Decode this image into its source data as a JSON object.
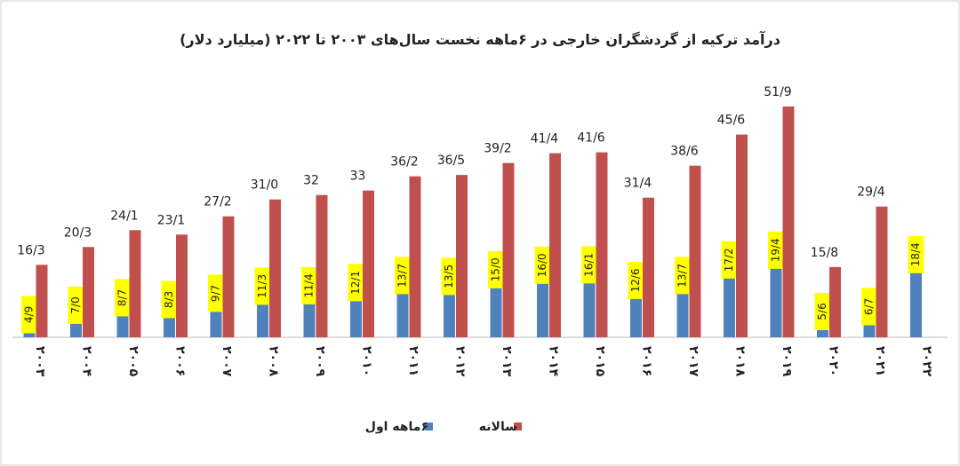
{
  "chart_data": {
    "type": "bar",
    "title": "درآمد ترکیه از گردشگران خارجی در ۶ماهه نخست سال‌های ۲۰۰۳ تا ۲۰۲۲ (میلیارد دلار)",
    "categories": [
      "۲۰۰۳",
      "۲۰۰۴",
      "۲۰۰۵",
      "۲۰۰۶",
      "۲۰۰۷",
      "۲۰۰۸",
      "۲۰۰۹",
      "۲۰۱۰",
      "۲۰۱۱",
      "۲۰۱۲",
      "۲۰۱۳",
      "۲۰۱۴",
      "۲۰۱۵",
      "۲۰۱۶",
      "۲۰۱۷",
      "۲۰۱۸",
      "۲۰۱۹",
      "۲۰۲۰",
      "۲۰۲۱",
      "۲۰۲۲"
    ],
    "series": [
      {
        "name": "۶ماهه اول",
        "color": "#4f81bd",
        "values": [
          4.9,
          7.0,
          8.7,
          8.3,
          9.7,
          11.3,
          11.4,
          12.1,
          13.7,
          13.5,
          15.0,
          16.0,
          16.1,
          12.6,
          13.7,
          17.2,
          19.4,
          5.6,
          6.7,
          18.4
        ],
        "value_labels": [
          "4/9",
          "7/0",
          "8/7",
          "8/3",
          "9/7",
          "11/3",
          "11/4",
          "12/1",
          "13/7",
          "13/5",
          "15/0",
          "16/0",
          "16/1",
          "12/6",
          "13/7",
          "17/2",
          "19/4",
          "5/6",
          "6/7",
          "18/4"
        ]
      },
      {
        "name": "سالانه",
        "color": "#c0504d",
        "values": [
          16.3,
          20.3,
          24.1,
          23.1,
          27.2,
          31.0,
          32,
          33,
          36.2,
          36.5,
          39.2,
          41.4,
          41.6,
          31.4,
          38.6,
          45.6,
          51.9,
          15.8,
          29.4,
          null
        ],
        "value_labels": [
          "16/3",
          "20/3",
          "24/1",
          "23/1",
          "27/2",
          "31/0",
          "32",
          "33",
          "36/2",
          "36/5",
          "39/2",
          "41/4",
          "41/6",
          "31/4",
          "38/6",
          "45/6",
          "51/9",
          "15/8",
          "29/4",
          null
        ]
      }
    ]
  }
}
